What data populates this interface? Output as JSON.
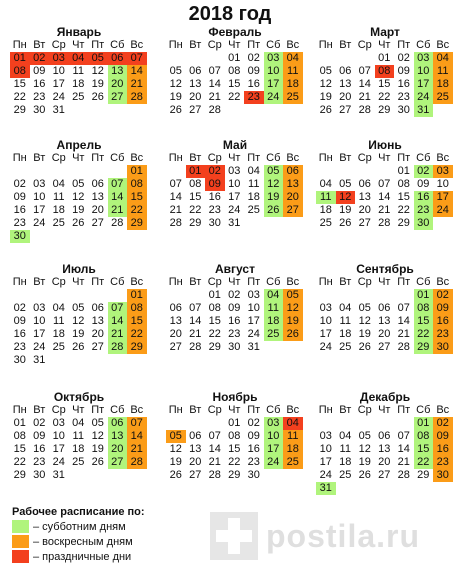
{
  "title": "2018 год",
  "weekdays": [
    "Пн",
    "Вт",
    "Ср",
    "Чт",
    "Пт",
    "Сб",
    "Вс"
  ],
  "months": [
    {
      "name": "Январь",
      "offset": 0,
      "days": 31,
      "sat": [
        13,
        20,
        27
      ],
      "sun": [
        14,
        21,
        28
      ],
      "hol": [
        1,
        2,
        3,
        4,
        5,
        6,
        7,
        8
      ]
    },
    {
      "name": "Февраль",
      "offset": 3,
      "days": 28,
      "sat": [
        3,
        10,
        17,
        24
      ],
      "sun": [
        4,
        11,
        18,
        25
      ],
      "hol": [
        23
      ]
    },
    {
      "name": "Март",
      "offset": 3,
      "days": 31,
      "sat": [
        3,
        10,
        17,
        24,
        31
      ],
      "sun": [
        4,
        11,
        18,
        25
      ],
      "hol": [
        8
      ]
    },
    {
      "name": "Апрель",
      "offset": 6,
      "days": 30,
      "sat": [
        7,
        14,
        21,
        30
      ],
      "sun": [
        1,
        8,
        15,
        22,
        29
      ],
      "hol": []
    },
    {
      "name": "Май",
      "offset": 1,
      "days": 31,
      "sat": [
        5,
        12,
        19,
        26
      ],
      "sun": [
        6,
        13,
        20,
        27
      ],
      "hol": [
        1,
        2,
        9
      ]
    },
    {
      "name": "Июнь",
      "offset": 4,
      "days": 30,
      "sat": [
        2,
        11,
        16,
        23,
        30
      ],
      "sun": [
        3,
        17,
        24
      ],
      "hol": [
        12
      ]
    },
    {
      "name": "Июль",
      "offset": 6,
      "days": 31,
      "sat": [
        7,
        14,
        21,
        28
      ],
      "sun": [
        1,
        8,
        15,
        22,
        29
      ],
      "hol": []
    },
    {
      "name": "Август",
      "offset": 2,
      "days": 31,
      "sat": [
        4,
        11,
        18,
        25
      ],
      "sun": [
        5,
        12,
        19,
        26
      ],
      "hol": []
    },
    {
      "name": "Сентябрь",
      "offset": 5,
      "days": 30,
      "sat": [
        1,
        8,
        15,
        22,
        29
      ],
      "sun": [
        2,
        9,
        16,
        23,
        30
      ],
      "hol": []
    },
    {
      "name": "Октябрь",
      "offset": 0,
      "days": 31,
      "sat": [
        6,
        13,
        20,
        27
      ],
      "sun": [
        7,
        14,
        21,
        28
      ],
      "hol": []
    },
    {
      "name": "Ноябрь",
      "offset": 3,
      "days": 30,
      "sat": [
        3,
        10,
        17,
        24
      ],
      "sun": [
        5,
        11,
        18,
        25
      ],
      "hol": [
        4
      ]
    },
    {
      "name": "Декабрь",
      "offset": 5,
      "days": 31,
      "sat": [
        1,
        8,
        15,
        22,
        31
      ],
      "sun": [
        2,
        9,
        16,
        23,
        30
      ],
      "hol": []
    }
  ],
  "legend": {
    "title": "Рабочее расписание по:",
    "items": [
      {
        "label": "– субботним дням",
        "color": "#b0f47c"
      },
      {
        "label": "– воскресным дням",
        "color": "#fb9c18"
      },
      {
        "label": "– праздничные дни",
        "color": "#f3401e"
      }
    ]
  },
  "watermark": "postila.ru"
}
